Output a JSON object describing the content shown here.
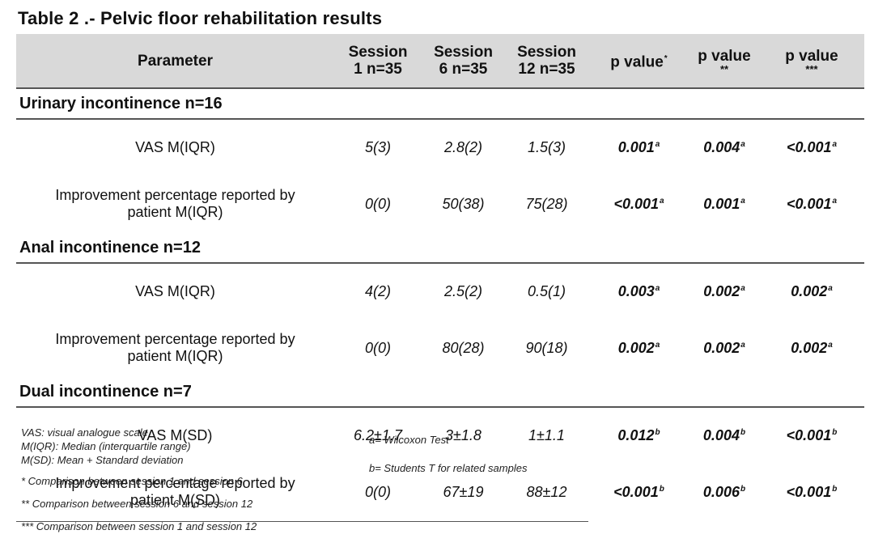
{
  "title": "Table 2 .- Pelvic floor rehabilitation results",
  "header": {
    "parameter": "Parameter",
    "session1": [
      "Session",
      "1 n=35"
    ],
    "session6": [
      "Session",
      "6 n=35"
    ],
    "session12": [
      "Session",
      "12 n=35"
    ],
    "p1": {
      "label": "p value",
      "stars": "*"
    },
    "p2": {
      "label": "p value",
      "stars": "**"
    },
    "p3": {
      "label": "p value",
      "stars": "***"
    }
  },
  "sections": [
    {
      "title": "Urinary incontinence n=16",
      "rows": [
        {
          "param": [
            "VAS M(IQR)"
          ],
          "s1": "5(3)",
          "s6": "2.8(2)",
          "s12": "1.5(3)",
          "p1": "0.001",
          "p1m": "a",
          "p2": "0.004",
          "p2m": "a",
          "p3": "<0.001",
          "p3m": "a"
        },
        {
          "param": [
            "Improvement percentage reported by",
            "patient M(IQR)"
          ],
          "s1": "0(0)",
          "s6": "50(38)",
          "s12": "75(28)",
          "p1": "<0.001",
          "p1m": "a",
          "p2": "0.001",
          "p2m": "a",
          "p3": "<0.001",
          "p3m": "a"
        }
      ]
    },
    {
      "title": "Anal incontinence n=12",
      "rows": [
        {
          "param": [
            "VAS M(IQR)"
          ],
          "s1": "4(2)",
          "s6": "2.5(2)",
          "s12": "0.5(1)",
          "p1": "0.003",
          "p1m": "a",
          "p2": "0.002",
          "p2m": "a",
          "p3": "0.002",
          "p3m": "a"
        },
        {
          "param": [
            "Improvement percentage reported by",
            "patient M(IQR)"
          ],
          "s1": "0(0)",
          "s6": "80(28)",
          "s12": "90(18)",
          "p1": "0.002",
          "p1m": "a",
          "p2": "0.002",
          "p2m": "a",
          "p3": "0.002",
          "p3m": "a"
        }
      ]
    },
    {
      "title": "Dual incontinence n=7",
      "rows": [
        {
          "param": [
            "VAS M(SD)"
          ],
          "s1": "6.2±1.7",
          "s6": "3±1.8",
          "s12": "1±1.1",
          "p1": "0.012",
          "p1m": "b",
          "p2": "0.004",
          "p2m": "b",
          "p3": "<0.001",
          "p3m": "b"
        },
        {
          "param": [
            "Improvement percentage reported by",
            "patient M(SD)"
          ],
          "s1": "0(0)",
          "s6": "67±19",
          "s12": "88±12",
          "p1": "<0.001",
          "p1m": "b",
          "p2": "0.006",
          "p2m": "b",
          "p3": "<0.001",
          "p3m": "b"
        }
      ]
    }
  ],
  "notes": {
    "abbr": [
      "VAS: visual analogue scale",
      "M(IQR): Median (interquartile range)",
      "M(SD): Mean + Standard deviation"
    ],
    "comparisons": [
      "* Comparison between session 1 and session 6",
      "** Comparison between session 6 and session 12",
      "*** Comparison between session 1 and session 12"
    ],
    "tests": [
      "a= Wilcoxon Test",
      "b= Students T for related samples"
    ]
  }
}
